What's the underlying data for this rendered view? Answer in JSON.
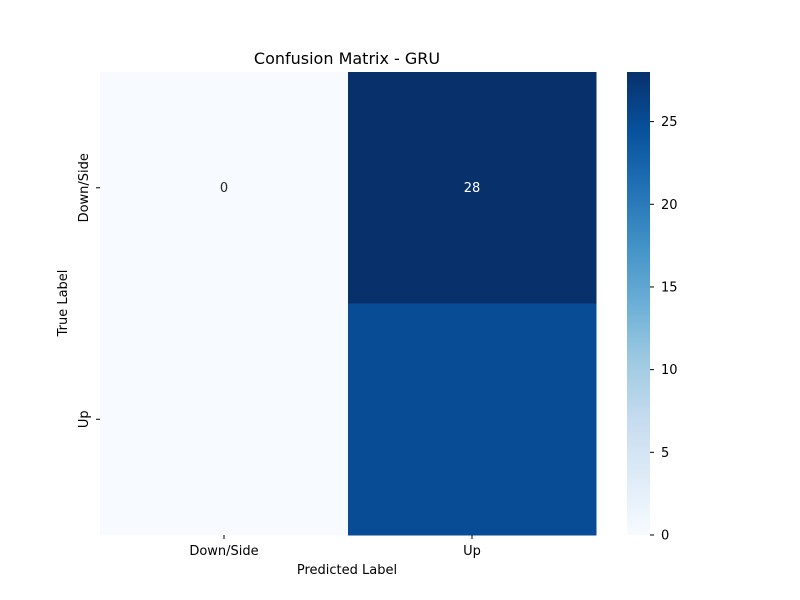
{
  "chart_data": {
    "type": "heatmap",
    "title": "Confusion Matrix - GRU",
    "xlabel": "Predicted Label",
    "ylabel": "True Label",
    "x_categories": [
      "Down/Side",
      "Up"
    ],
    "y_categories": [
      "Down/Side",
      "Up"
    ],
    "matrix": [
      [
        0,
        28
      ],
      [
        0,
        25
      ]
    ],
    "annotations": [
      [
        "0",
        "28"
      ],
      [
        "",
        ""
      ]
    ],
    "colorbar": {
      "range": [
        0,
        28
      ],
      "ticks": [
        0,
        5,
        10,
        15,
        20,
        25
      ]
    },
    "colormap": [
      "#f7fbff",
      "#deebf7",
      "#c6dbef",
      "#9ecae1",
      "#6baed6",
      "#4292c6",
      "#2171b5",
      "#08519c",
      "#08306b"
    ]
  }
}
